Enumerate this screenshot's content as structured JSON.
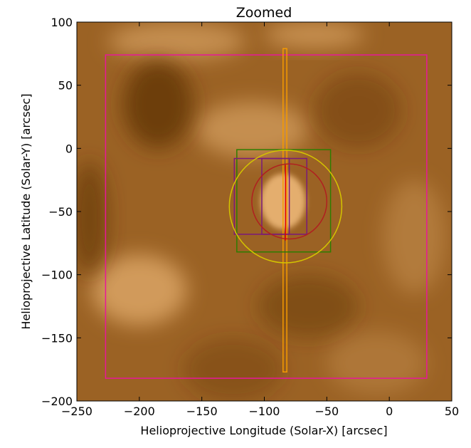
{
  "chart_data": {
    "type": "heatmap",
    "title": "Zoomed",
    "xlabel": "Helioprojective Longitude (Solar-X) [arcsec]",
    "ylabel": "Helioprojective Latitude (Solar-Y) [arcsec]",
    "xlim": [
      -250,
      50
    ],
    "ylim": [
      -200,
      100
    ],
    "x_ticks": [
      -250,
      -200,
      -150,
      -100,
      -50,
      0,
      50
    ],
    "y_ticks": [
      -200,
      -150,
      -100,
      -50,
      0,
      50,
      100
    ],
    "x_tick_labels": [
      "−250",
      "−200",
      "−150",
      "−100",
      "−50",
      "0",
      "50"
    ],
    "y_tick_labels": [
      "−200",
      "−150",
      "−100",
      "−50",
      "0",
      "50",
      "100"
    ],
    "grid": false,
    "colormap": "sdoaia171-like brown",
    "overlays": {
      "rectangles": [
        {
          "color": "#e8189a",
          "x0": -227,
          "x1": 30,
          "y0": -182,
          "y1": 74
        },
        {
          "color": "#f59a00",
          "x0": -85,
          "x1": -82,
          "y0": -177,
          "y1": 79
        },
        {
          "color": "#2e7d00",
          "x0": -122,
          "x1": -47,
          "y0": -82,
          "y1": -1
        },
        {
          "color": "#7a1a7a",
          "x0": -124,
          "x1": -80,
          "y0": -68,
          "y1": -8
        },
        {
          "color": "#7a1a7a",
          "x0": -102,
          "x1": -66,
          "y0": -68,
          "y1": -8
        }
      ],
      "circles": [
        {
          "color": "#d4c400",
          "cx": -83,
          "cy": -46,
          "r": 45
        },
        {
          "color": "#b02020",
          "cx": -80,
          "cy": -42,
          "r": 30
        }
      ],
      "vertical_lines": [
        {
          "color": "#e00000",
          "x": -83,
          "y0": -73,
          "y1": -13
        }
      ]
    },
    "image_features": [
      {
        "x": -85,
        "y": -42,
        "rx": 18,
        "ry": 22,
        "brightness": 0.95
      },
      {
        "x": -200,
        "y": -112,
        "rx": 38,
        "ry": 28,
        "brightness": 0.7
      },
      {
        "x": -110,
        "y": 15,
        "rx": 45,
        "ry": 22,
        "brightness": 0.55
      },
      {
        "x": -170,
        "y": 85,
        "rx": 55,
        "ry": 15,
        "brightness": 0.55
      },
      {
        "x": -60,
        "y": 90,
        "rx": 40,
        "ry": 10,
        "brightness": 0.6
      },
      {
        "x": -185,
        "y": 35,
        "rx": 28,
        "ry": 35,
        "brightness": -0.7
      },
      {
        "x": -240,
        "y": -55,
        "rx": 15,
        "ry": 45,
        "brightness": -0.55
      },
      {
        "x": -65,
        "y": -125,
        "rx": 40,
        "ry": 25,
        "brightness": -0.4
      },
      {
        "x": -25,
        "y": 30,
        "rx": 35,
        "ry": 30,
        "brightness": -0.35
      },
      {
        "x": 20,
        "y": -70,
        "rx": 25,
        "ry": 45,
        "brightness": 0.3
      },
      {
        "x": -125,
        "y": -175,
        "rx": 40,
        "ry": 25,
        "brightness": -0.3
      },
      {
        "x": -10,
        "y": -170,
        "rx": 40,
        "ry": 25,
        "brightness": 0.25
      }
    ]
  }
}
